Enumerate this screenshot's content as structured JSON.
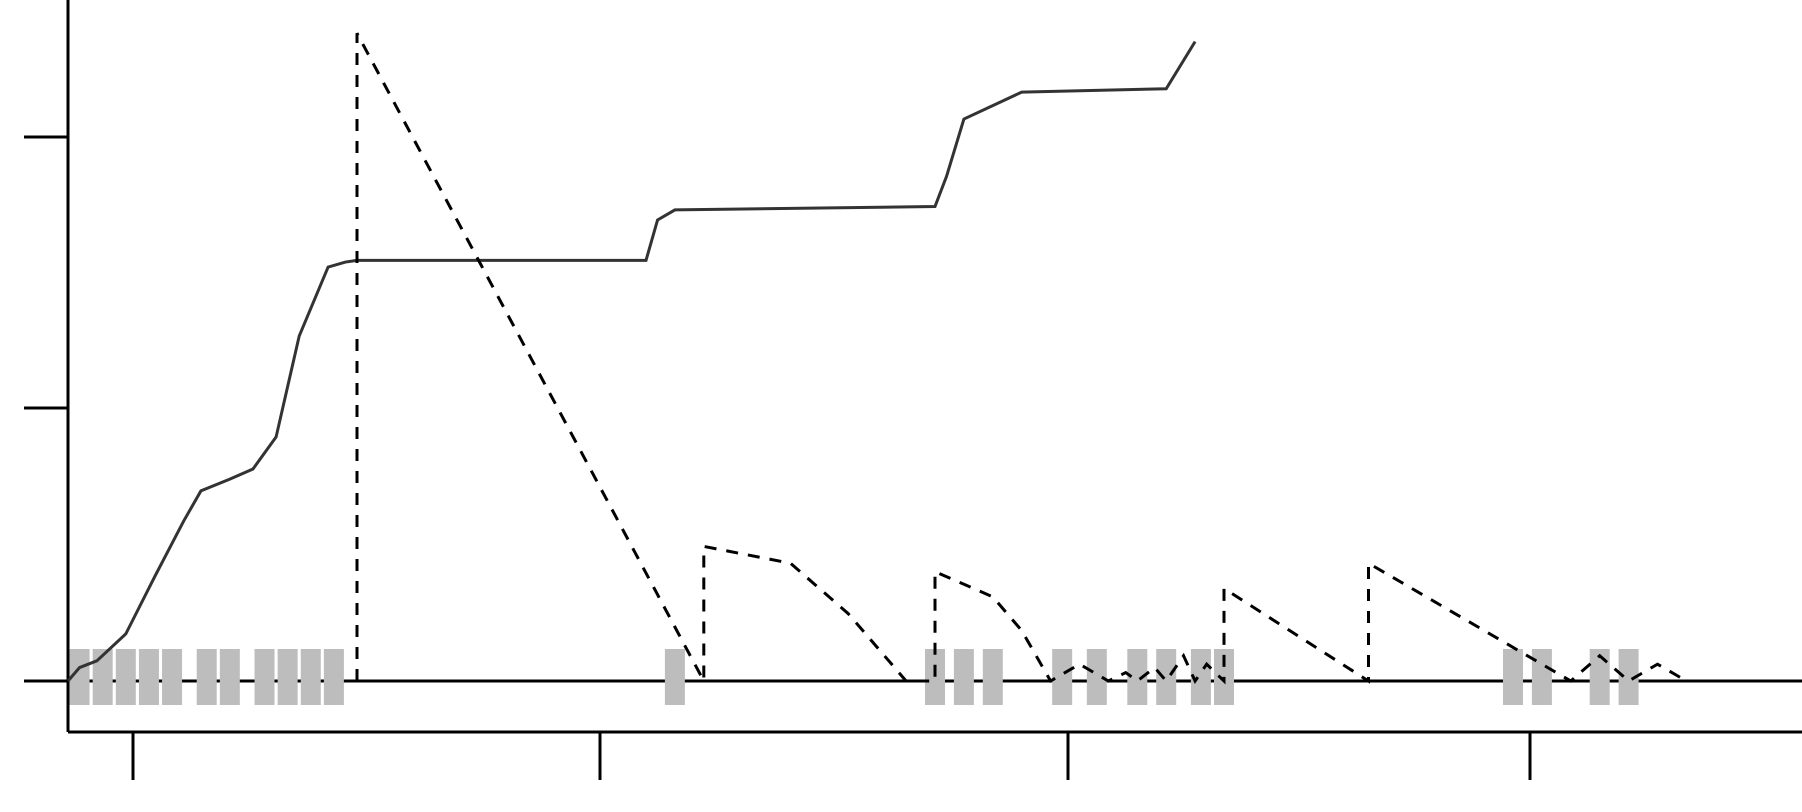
{
  "chart_data": {
    "type": "line",
    "title": "",
    "xlabel": "",
    "ylabel": "",
    "grid": false,
    "legend": "none",
    "colors": {
      "axis": "#000000",
      "solid": "#333333",
      "dashed": "#000000",
      "bars": "#bdbdbd"
    },
    "series": [
      {
        "style": "solid",
        "points": [
          [
            0.0,
            0.0
          ],
          [
            0.02,
            0.08
          ],
          [
            0.05,
            0.12
          ],
          [
            0.1,
            0.28
          ],
          [
            0.15,
            0.62
          ],
          [
            0.2,
            0.95
          ],
          [
            0.23,
            1.13
          ],
          [
            0.28,
            1.2
          ],
          [
            0.32,
            1.26
          ],
          [
            0.36,
            1.45
          ],
          [
            0.4,
            2.05
          ],
          [
            0.45,
            2.46
          ],
          [
            0.48,
            2.49
          ],
          [
            0.5,
            2.5
          ],
          [
            1.0,
            2.5
          ],
          [
            1.02,
            2.74
          ],
          [
            1.05,
            2.8
          ],
          [
            1.5,
            2.82
          ],
          [
            1.52,
            3.0
          ],
          [
            1.55,
            3.34
          ],
          [
            1.65,
            3.5
          ],
          [
            1.9,
            3.52
          ],
          [
            1.95,
            3.8
          ]
        ]
      },
      {
        "style": "dashed",
        "points": [
          [
            0.5,
            0.0
          ],
          [
            0.5,
            3.85
          ],
          [
            1.1,
            0.0
          ],
          [
            1.1,
            0.8
          ],
          [
            1.25,
            0.7
          ],
          [
            1.35,
            0.4
          ],
          [
            1.45,
            0.0
          ],
          [
            1.5,
            0.0
          ],
          [
            1.5,
            0.65
          ],
          [
            1.6,
            0.5
          ],
          [
            1.65,
            0.3
          ],
          [
            1.7,
            0.0
          ],
          [
            1.75,
            0.1
          ],
          [
            1.8,
            0.0
          ],
          [
            1.83,
            0.05
          ],
          [
            1.85,
            0.0
          ],
          [
            1.88,
            0.08
          ],
          [
            1.9,
            0.0
          ],
          [
            1.93,
            0.15
          ],
          [
            1.95,
            0.0
          ],
          [
            1.97,
            0.1
          ],
          [
            2.0,
            0.0
          ],
          [
            2.0,
            0.55
          ],
          [
            2.25,
            0.0
          ],
          [
            2.25,
            0.7
          ],
          [
            2.6,
            0.0
          ],
          [
            2.65,
            0.15
          ],
          [
            2.7,
            0.0
          ],
          [
            2.75,
            0.1
          ],
          [
            2.8,
            0.0
          ]
        ]
      },
      {
        "style": "bars",
        "points": [
          [
            0.02,
            0.1
          ],
          [
            0.06,
            0.1
          ],
          [
            0.1,
            0.1
          ],
          [
            0.14,
            0.1
          ],
          [
            0.18,
            0.1
          ],
          [
            0.24,
            0.1
          ],
          [
            0.28,
            0.1
          ],
          [
            0.34,
            0.1
          ],
          [
            0.38,
            0.1
          ],
          [
            0.42,
            0.1
          ],
          [
            0.46,
            0.1
          ],
          [
            1.05,
            0.1
          ],
          [
            1.5,
            0.1
          ],
          [
            1.55,
            0.1
          ],
          [
            1.6,
            0.1
          ],
          [
            1.72,
            0.1
          ],
          [
            1.78,
            0.1
          ],
          [
            1.85,
            0.1
          ],
          [
            1.9,
            0.1
          ],
          [
            1.96,
            0.1
          ],
          [
            2.0,
            0.1
          ],
          [
            2.5,
            0.1
          ],
          [
            2.55,
            0.1
          ],
          [
            2.65,
            0.1
          ],
          [
            2.7,
            0.1
          ]
        ]
      }
    ],
    "xlim": [
      0,
      3.0
    ],
    "ylim": [
      -0.1,
      4.0
    ],
    "x_ticks": [
      0,
      1,
      2,
      3
    ],
    "x_tick_labels": [
      "",
      "",
      "",
      ""
    ],
    "y_ticks": [
      0,
      1,
      2
    ],
    "y_tick_labels": [
      "",
      "",
      ""
    ]
  }
}
